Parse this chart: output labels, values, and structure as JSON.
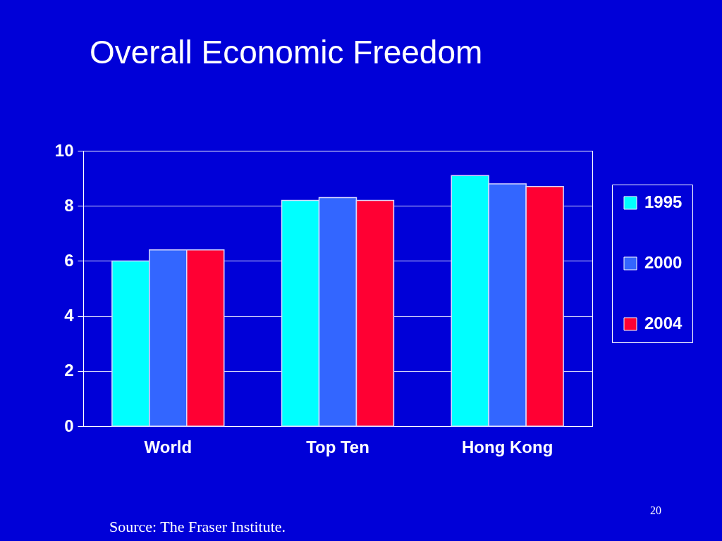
{
  "chart_data": {
    "type": "bar",
    "title": "Overall Economic Freedom",
    "categories": [
      "World",
      "Top Ten",
      "Hong Kong"
    ],
    "series": [
      {
        "name": "1995",
        "color": "#00ffff",
        "values": [
          6.0,
          8.2,
          9.1
        ]
      },
      {
        "name": "2000",
        "color": "#3366ff",
        "values": [
          6.4,
          8.3,
          8.8
        ]
      },
      {
        "name": "2004",
        "color": "#ff0033",
        "values": [
          6.4,
          8.2,
          8.7
        ]
      }
    ],
    "ylim": [
      0,
      10
    ],
    "yticks": [
      0,
      2,
      4,
      6,
      8,
      10
    ],
    "grid": "y",
    "legend": "right",
    "annotations": [
      "Source: The Fraser Institute.",
      "20"
    ]
  }
}
